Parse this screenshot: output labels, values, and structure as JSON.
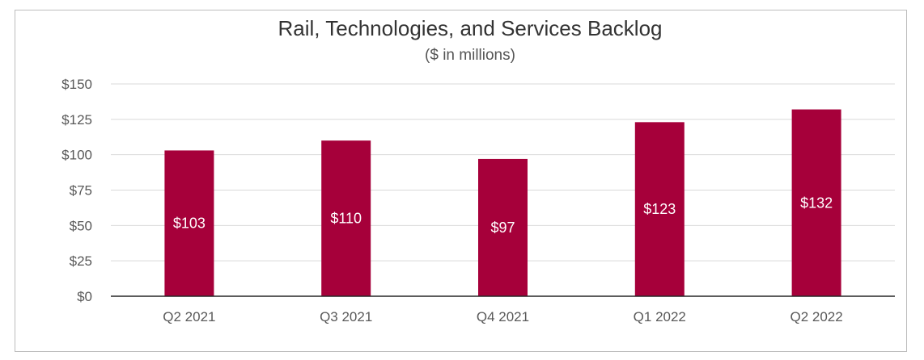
{
  "chart_data": {
    "type": "bar",
    "title": "Rail, Technologies, and Services Backlog",
    "subtitle": "($ in millions)",
    "categories": [
      "Q2 2021",
      "Q3 2021",
      "Q4 2021",
      "Q1 2022",
      "Q2 2022"
    ],
    "values": [
      103,
      110,
      97,
      123,
      132
    ],
    "data_labels": [
      "$103",
      "$110",
      "$97",
      "$123",
      "$132"
    ],
    "yticks": [
      0,
      25,
      50,
      75,
      100,
      125,
      150
    ],
    "ytick_labels": [
      "$0",
      "$25",
      "$50",
      "$75",
      "$100",
      "$125",
      "$150"
    ],
    "ylim": [
      0,
      150
    ],
    "grid": true,
    "legend": "none",
    "bar_color": "#a6003a"
  }
}
